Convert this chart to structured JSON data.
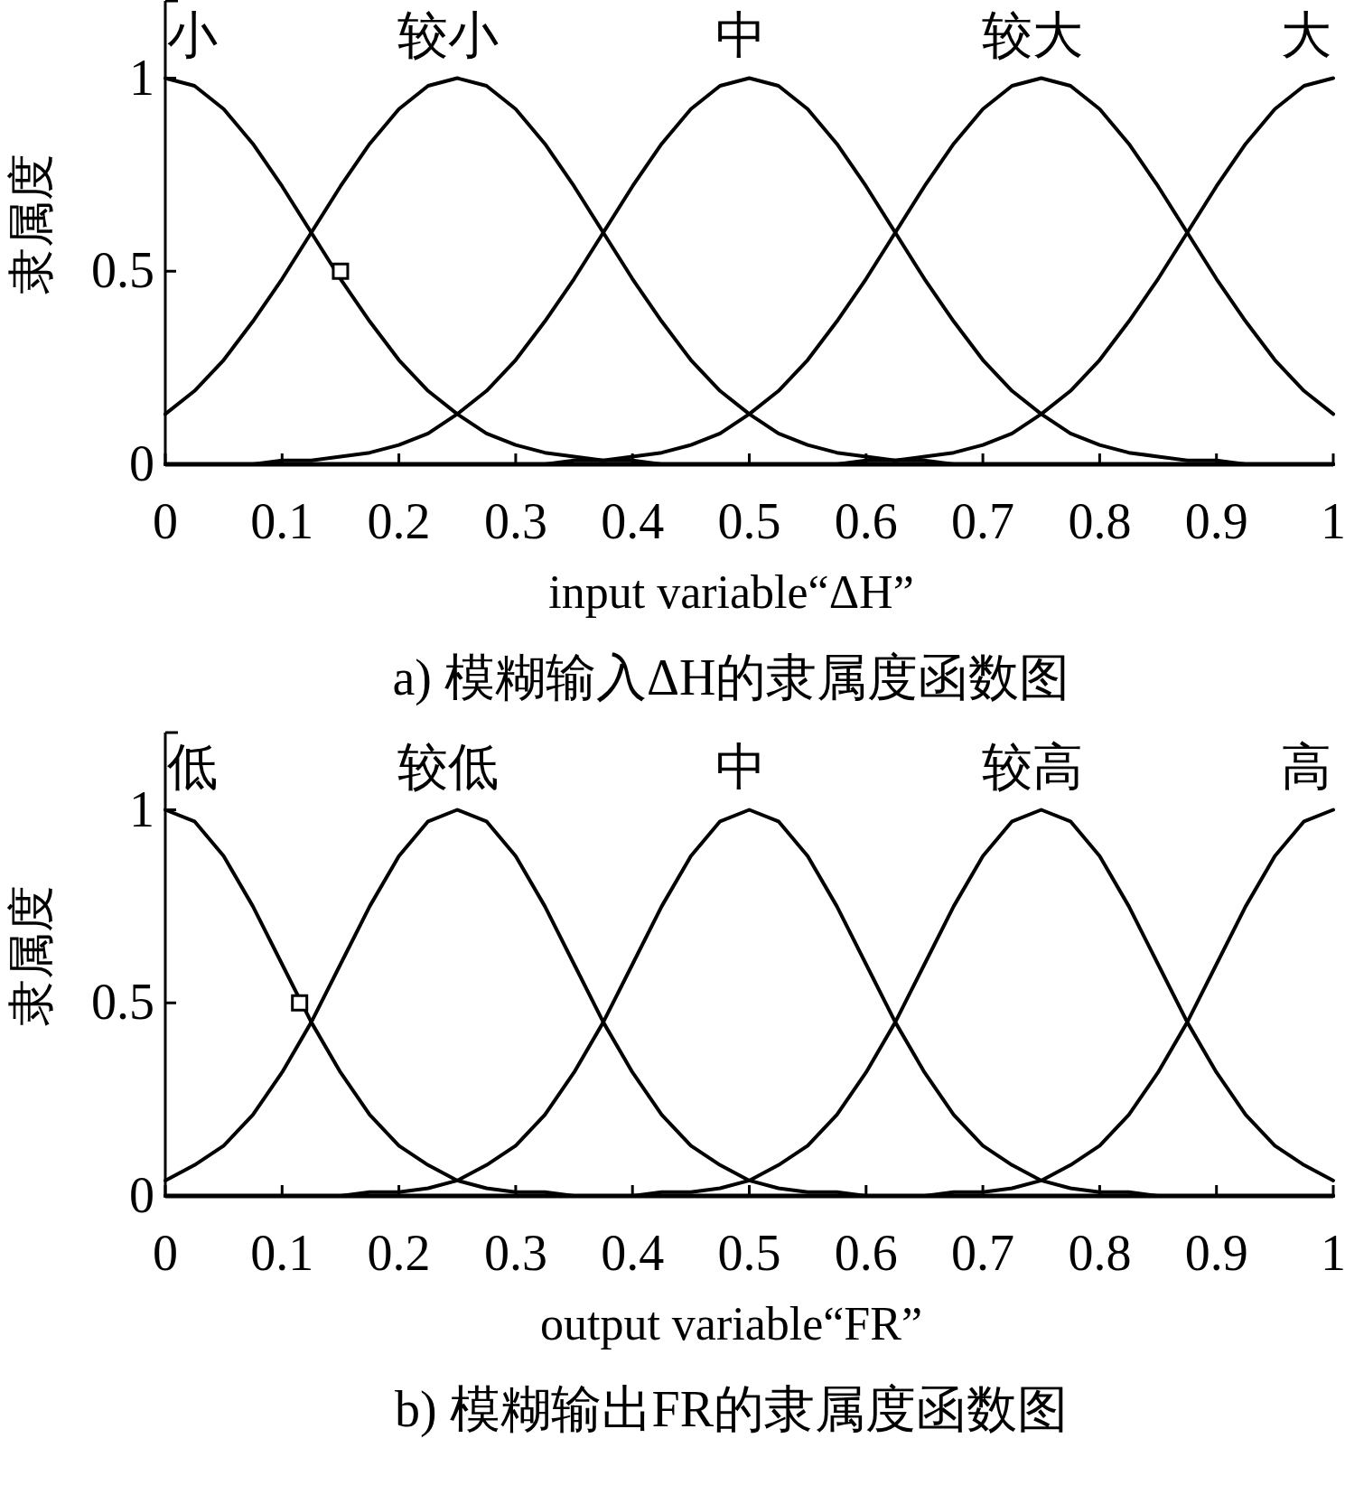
{
  "chart_data": [
    {
      "type": "line",
      "title": "a) 模糊输入ΔH的隶属度函数图",
      "xlabel": "input variable“ΔH”",
      "ylabel": "隶属度",
      "legend": false,
      "xlim": [
        0,
        1
      ],
      "ylim": [
        0,
        1.2
      ],
      "xticks": [
        0,
        0.1,
        0.2,
        0.3,
        0.4,
        0.5,
        0.6,
        0.7,
        0.8,
        0.9,
        1
      ],
      "yticks": [
        0,
        0.5,
        1
      ],
      "x": [
        0,
        0.025,
        0.05,
        0.075,
        0.1,
        0.125,
        0.15,
        0.175,
        0.2,
        0.225,
        0.25,
        0.275,
        0.3,
        0.325,
        0.35,
        0.375,
        0.4,
        0.425,
        0.45,
        0.475,
        0.5,
        0.525,
        0.55,
        0.575,
        0.6,
        0.625,
        0.65,
        0.675,
        0.7,
        0.725,
        0.75,
        0.775,
        0.8,
        0.825,
        0.85,
        0.875,
        0.9,
        0.925,
        0.95,
        0.975,
        1
      ],
      "series": [
        {
          "name": "小",
          "color": "#000000",
          "values": [
            1,
            0.98,
            0.92,
            0.83,
            0.72,
            0.6,
            0.48,
            0.37,
            0.27,
            0.19,
            0.13,
            0.08,
            0.05,
            0.03,
            0.02,
            0.01,
            0.01,
            0,
            0,
            0,
            0,
            0,
            0,
            0,
            0,
            0,
            0,
            0,
            0,
            0,
            0,
            0,
            0,
            0,
            0,
            0,
            0,
            0,
            0,
            0,
            0
          ]
        },
        {
          "name": "较小",
          "color": "#000000",
          "values": [
            0.13,
            0.19,
            0.27,
            0.37,
            0.48,
            0.6,
            0.72,
            0.83,
            0.92,
            0.98,
            1,
            0.98,
            0.92,
            0.83,
            0.72,
            0.6,
            0.48,
            0.37,
            0.27,
            0.19,
            0.13,
            0.08,
            0.05,
            0.03,
            0.02,
            0.01,
            0.01,
            0,
            0,
            0,
            0,
            0,
            0,
            0,
            0,
            0,
            0,
            0,
            0,
            0,
            0
          ]
        },
        {
          "name": "中",
          "color": "#000000",
          "values": [
            0,
            0,
            0,
            0,
            0.01,
            0.01,
            0.02,
            0.03,
            0.05,
            0.08,
            0.13,
            0.19,
            0.27,
            0.37,
            0.48,
            0.6,
            0.72,
            0.83,
            0.92,
            0.98,
            1,
            0.98,
            0.92,
            0.83,
            0.72,
            0.6,
            0.48,
            0.37,
            0.27,
            0.19,
            0.13,
            0.08,
            0.05,
            0.03,
            0.02,
            0.01,
            0.01,
            0,
            0,
            0,
            0
          ]
        },
        {
          "name": "较大",
          "color": "#000000",
          "values": [
            0,
            0,
            0,
            0,
            0,
            0,
            0,
            0,
            0,
            0,
            0,
            0,
            0,
            0,
            0.01,
            0.01,
            0.02,
            0.03,
            0.05,
            0.08,
            0.13,
            0.19,
            0.27,
            0.37,
            0.48,
            0.6,
            0.72,
            0.83,
            0.92,
            0.98,
            1,
            0.98,
            0.92,
            0.83,
            0.72,
            0.6,
            0.48,
            0.37,
            0.27,
            0.19,
            0.13
          ]
        },
        {
          "name": "大",
          "color": "#000000",
          "values": [
            0,
            0,
            0,
            0,
            0,
            0,
            0,
            0,
            0,
            0,
            0,
            0,
            0,
            0,
            0,
            0,
            0,
            0,
            0,
            0,
            0,
            0,
            0,
            0,
            0.01,
            0.01,
            0.02,
            0.03,
            0.05,
            0.08,
            0.13,
            0.19,
            0.27,
            0.37,
            0.48,
            0.6,
            0.72,
            0.83,
            0.92,
            0.98,
            1
          ]
        },
        {
          "type": "scatter",
          "marker": "square",
          "color": "#000000",
          "x": [
            0.15
          ],
          "values": [
            0.5
          ]
        }
      ]
    },
    {
      "type": "line",
      "title": "b) 模糊输出FR的隶属度函数图",
      "xlabel": "output variable“FR”",
      "ylabel": "隶属度",
      "legend": false,
      "xlim": [
        0,
        1
      ],
      "ylim": [
        0,
        1.2
      ],
      "xticks": [
        0,
        0.1,
        0.2,
        0.3,
        0.4,
        0.5,
        0.6,
        0.7,
        0.8,
        0.9,
        1
      ],
      "yticks": [
        0,
        0.5,
        1
      ],
      "x": [
        0,
        0.025,
        0.05,
        0.075,
        0.1,
        0.125,
        0.15,
        0.175,
        0.2,
        0.225,
        0.25,
        0.275,
        0.3,
        0.325,
        0.35,
        0.375,
        0.4,
        0.425,
        0.45,
        0.475,
        0.5,
        0.525,
        0.55,
        0.575,
        0.6,
        0.625,
        0.65,
        0.675,
        0.7,
        0.725,
        0.75,
        0.775,
        0.8,
        0.825,
        0.85,
        0.875,
        0.9,
        0.925,
        0.95,
        0.975,
        1
      ],
      "series": [
        {
          "name": "低",
          "color": "#000000",
          "values": [
            1,
            0.97,
            0.88,
            0.75,
            0.6,
            0.45,
            0.32,
            0.21,
            0.13,
            0.08,
            0.04,
            0.02,
            0.01,
            0.01,
            0,
            0,
            0,
            0,
            0,
            0,
            0,
            0,
            0,
            0,
            0,
            0,
            0,
            0,
            0,
            0,
            0,
            0,
            0,
            0,
            0,
            0,
            0,
            0,
            0,
            0,
            0
          ]
        },
        {
          "name": "较低",
          "color": "#000000",
          "values": [
            0.04,
            0.08,
            0.13,
            0.21,
            0.32,
            0.45,
            0.6,
            0.75,
            0.88,
            0.97,
            1,
            0.97,
            0.88,
            0.75,
            0.6,
            0.45,
            0.32,
            0.21,
            0.13,
            0.08,
            0.04,
            0.02,
            0.01,
            0.01,
            0,
            0,
            0,
            0,
            0,
            0,
            0,
            0,
            0,
            0,
            0,
            0,
            0,
            0,
            0,
            0,
            0
          ]
        },
        {
          "name": "中",
          "color": "#000000",
          "values": [
            0,
            0,
            0,
            0,
            0,
            0,
            0,
            0.01,
            0.01,
            0.02,
            0.04,
            0.08,
            0.13,
            0.21,
            0.32,
            0.45,
            0.6,
            0.75,
            0.88,
            0.97,
            1,
            0.97,
            0.88,
            0.75,
            0.6,
            0.45,
            0.32,
            0.21,
            0.13,
            0.08,
            0.04,
            0.02,
            0.01,
            0.01,
            0,
            0,
            0,
            0,
            0,
            0,
            0
          ]
        },
        {
          "name": "较高",
          "color": "#000000",
          "values": [
            0,
            0,
            0,
            0,
            0,
            0,
            0,
            0,
            0,
            0,
            0,
            0,
            0,
            0,
            0,
            0,
            0,
            0.01,
            0.01,
            0.02,
            0.04,
            0.08,
            0.13,
            0.21,
            0.32,
            0.45,
            0.6,
            0.75,
            0.88,
            0.97,
            1,
            0.97,
            0.88,
            0.75,
            0.6,
            0.45,
            0.32,
            0.21,
            0.13,
            0.08,
            0.04
          ]
        },
        {
          "name": "高",
          "color": "#000000",
          "values": [
            0,
            0,
            0,
            0,
            0,
            0,
            0,
            0,
            0,
            0,
            0,
            0,
            0,
            0,
            0,
            0,
            0,
            0,
            0,
            0,
            0,
            0,
            0,
            0,
            0,
            0,
            0,
            0.01,
            0.01,
            0.02,
            0.04,
            0.08,
            0.13,
            0.21,
            0.32,
            0.45,
            0.6,
            0.75,
            0.88,
            0.97,
            1
          ]
        },
        {
          "type": "scatter",
          "marker": "square",
          "color": "#000000",
          "x": [
            0.115
          ],
          "values": [
            0.5
          ]
        }
      ]
    }
  ]
}
